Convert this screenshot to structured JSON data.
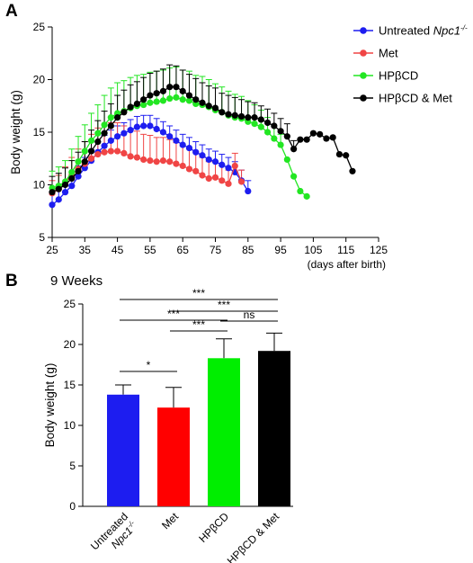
{
  "figure": {
    "panel_a_letter": "A",
    "panel_b_letter": "B"
  },
  "chart_data": [
    {
      "type": "line",
      "panel": "A",
      "ylabel": "Body weight (g)",
      "xlabel": "(days after birth)",
      "xlim": [
        25,
        125
      ],
      "ylim": [
        5,
        25
      ],
      "xticks": [
        "25",
        "35",
        "45",
        "55",
        "65",
        "75",
        "85",
        "95",
        "105",
        "115",
        "125"
      ],
      "yticks": [
        "5",
        "10",
        "15",
        "20",
        "25"
      ],
      "legend_position": "top-right",
      "grid": false,
      "series": [
        {
          "name": "Untreated",
          "name_italic": "Npc1",
          "name_sup": "-/-",
          "color": "#1d1df0",
          "x": [
            25,
            27,
            29,
            31,
            33,
            35,
            37,
            39,
            41,
            43,
            45,
            47,
            49,
            51,
            53,
            55,
            57,
            59,
            61,
            63,
            65,
            67,
            69,
            71,
            73,
            75,
            77,
            79,
            81,
            83,
            85
          ],
          "y": [
            8.1,
            8.6,
            9.3,
            9.9,
            10.8,
            11.6,
            12.3,
            13.1,
            13.7,
            14.2,
            14.6,
            14.9,
            15.2,
            15.5,
            15.6,
            15.6,
            15.3,
            15.0,
            14.6,
            14.2,
            13.8,
            13.5,
            13.1,
            12.8,
            12.4,
            12.2,
            11.9,
            11.6,
            11.2,
            10.4,
            9.4
          ],
          "err": [
            1.0,
            1.0,
            1.0,
            1.0,
            1.0,
            1.0,
            1.0,
            1.0,
            1.0,
            1.0,
            1.0,
            1.0,
            1.0,
            1.0,
            1.0,
            1.0,
            1.0,
            1.0,
            1.0,
            1.0,
            1.0,
            1.0,
            1.0,
            1.0,
            1.0,
            1.0,
            1.0,
            1.0,
            1.0,
            1.0,
            1.0
          ]
        },
        {
          "name": "Met",
          "color": "#f04545",
          "x": [
            25,
            27,
            29,
            31,
            33,
            35,
            37,
            39,
            41,
            43,
            45,
            47,
            49,
            51,
            53,
            55,
            57,
            59,
            61,
            63,
            65,
            67,
            69,
            71,
            73,
            75,
            77,
            79,
            81,
            83
          ],
          "y": [
            9.2,
            9.6,
            10.2,
            10.9,
            11.5,
            12.0,
            12.5,
            12.9,
            13.1,
            13.2,
            13.2,
            13.0,
            12.7,
            12.6,
            12.4,
            12.3,
            12.2,
            12.3,
            12.2,
            12.0,
            11.8,
            11.5,
            11.3,
            10.9,
            10.6,
            10.7,
            10.4,
            10.1,
            11.8,
            10.3
          ],
          "err": [
            1.2,
            1.3,
            1.5,
            1.7,
            1.9,
            2.1,
            2.3,
            2.5,
            2.6,
            2.7,
            2.7,
            2.6,
            2.6,
            2.5,
            2.4,
            2.4,
            2.3,
            2.2,
            2.1,
            2.0,
            1.9,
            1.9,
            1.8,
            1.7,
            1.6,
            1.5,
            1.4,
            1.3,
            1.2,
            1.1
          ]
        },
        {
          "name": "HPβCD",
          "color": "#22e622",
          "x": [
            25,
            27,
            29,
            31,
            33,
            35,
            37,
            39,
            41,
            43,
            45,
            47,
            49,
            51,
            53,
            55,
            57,
            59,
            61,
            63,
            65,
            67,
            69,
            71,
            73,
            75,
            77,
            79,
            81,
            83,
            85,
            87,
            89,
            91,
            93,
            95,
            97,
            99,
            101,
            103
          ],
          "y": [
            9.7,
            9.9,
            10.3,
            11.2,
            12.2,
            13.2,
            14.2,
            14.9,
            15.7,
            16.4,
            16.8,
            17.0,
            17.3,
            17.5,
            17.6,
            17.8,
            17.9,
            18.0,
            18.2,
            18.3,
            18.1,
            18.0,
            17.7,
            17.6,
            17.4,
            17.1,
            16.9,
            16.6,
            16.4,
            16.3,
            16.0,
            15.8,
            15.5,
            15.0,
            14.4,
            13.8,
            12.4,
            10.8,
            9.4,
            8.9
          ],
          "err": [
            1.6,
            1.8,
            2.0,
            2.2,
            2.4,
            2.5,
            2.6,
            2.7,
            2.8,
            2.8,
            2.9,
            2.9,
            2.9,
            2.9,
            2.9,
            2.9,
            2.9,
            2.9,
            2.9,
            2.9,
            2.8,
            2.8,
            2.7,
            2.7,
            2.6,
            2.5,
            2.4,
            2.3,
            2.2,
            2.1,
            2.0,
            1.8,
            1.6,
            1.4,
            1.2,
            1.0,
            0,
            0,
            0,
            0
          ]
        },
        {
          "name": "HPβCD & Met",
          "color": "#000000",
          "x": [
            25,
            27,
            29,
            31,
            33,
            35,
            37,
            39,
            41,
            43,
            45,
            47,
            49,
            51,
            53,
            55,
            57,
            59,
            61,
            63,
            65,
            67,
            69,
            71,
            73,
            75,
            77,
            79,
            81,
            83,
            85,
            87,
            89,
            91,
            93,
            95,
            97,
            99,
            101,
            103,
            105,
            107,
            109,
            111,
            113,
            115,
            117
          ],
          "y": [
            9.3,
            9.6,
            10.0,
            10.6,
            11.3,
            12.2,
            13.2,
            14.1,
            14.9,
            15.6,
            16.4,
            16.9,
            17.4,
            17.7,
            18.1,
            18.5,
            18.7,
            18.9,
            19.3,
            19.3,
            18.9,
            18.5,
            18.1,
            17.8,
            17.5,
            17.3,
            16.9,
            16.7,
            16.6,
            16.5,
            16.4,
            16.4,
            16.2,
            15.9,
            15.6,
            15.1,
            14.6,
            13.4,
            14.3,
            14.3,
            14.9,
            14.8,
            14.4,
            14.5,
            12.9,
            12.8,
            11.3
          ],
          "err": [
            1.5,
            1.5,
            1.6,
            1.7,
            1.8,
            1.9,
            2.0,
            2.0,
            2.1,
            2.1,
            2.1,
            2.1,
            2.1,
            2.1,
            2.1,
            2.1,
            2.1,
            2.1,
            2.1,
            2.0,
            2.0,
            2.0,
            2.0,
            1.9,
            1.9,
            1.9,
            1.8,
            1.8,
            1.7,
            1.6,
            1.5,
            1.4,
            1.3,
            1.3,
            1.2,
            1.2,
            1.2,
            0.8,
            0,
            0,
            0,
            0,
            0,
            0,
            0,
            0,
            0
          ]
        }
      ]
    },
    {
      "type": "bar",
      "panel": "B",
      "title": "9 Weeks",
      "ylabel": "Body weight (g)",
      "ylim": [
        0,
        25
      ],
      "yticks": [
        "0",
        "5",
        "10",
        "15",
        "20",
        "25"
      ],
      "categories": [
        {
          "line1": "Untreated",
          "line2": "Npc1",
          "sup": "-/-"
        },
        {
          "line1": "Met"
        },
        {
          "line1": "HPβCD"
        },
        {
          "line1": "HPβCD & Met"
        }
      ],
      "values": [
        13.8,
        12.2,
        18.3,
        19.2
      ],
      "errors": [
        1.2,
        2.5,
        2.4,
        2.2
      ],
      "colors": [
        "#1d1df0",
        "#ff0000",
        "#00ee00",
        "#000000"
      ],
      "significance": [
        {
          "from": 0,
          "to": 1,
          "label": "*",
          "level": 0
        },
        {
          "from": 2,
          "to": 3,
          "label": "ns",
          "level": 4
        },
        {
          "from": 1,
          "to": 2,
          "label": "***",
          "level": 3
        },
        {
          "from": 0,
          "to": 2,
          "label": "***",
          "level": 5
        },
        {
          "from": 1,
          "to": 3,
          "label": "***",
          "level": 6
        },
        {
          "from": 0,
          "to": 3,
          "label": "***",
          "level": 7
        }
      ]
    }
  ]
}
